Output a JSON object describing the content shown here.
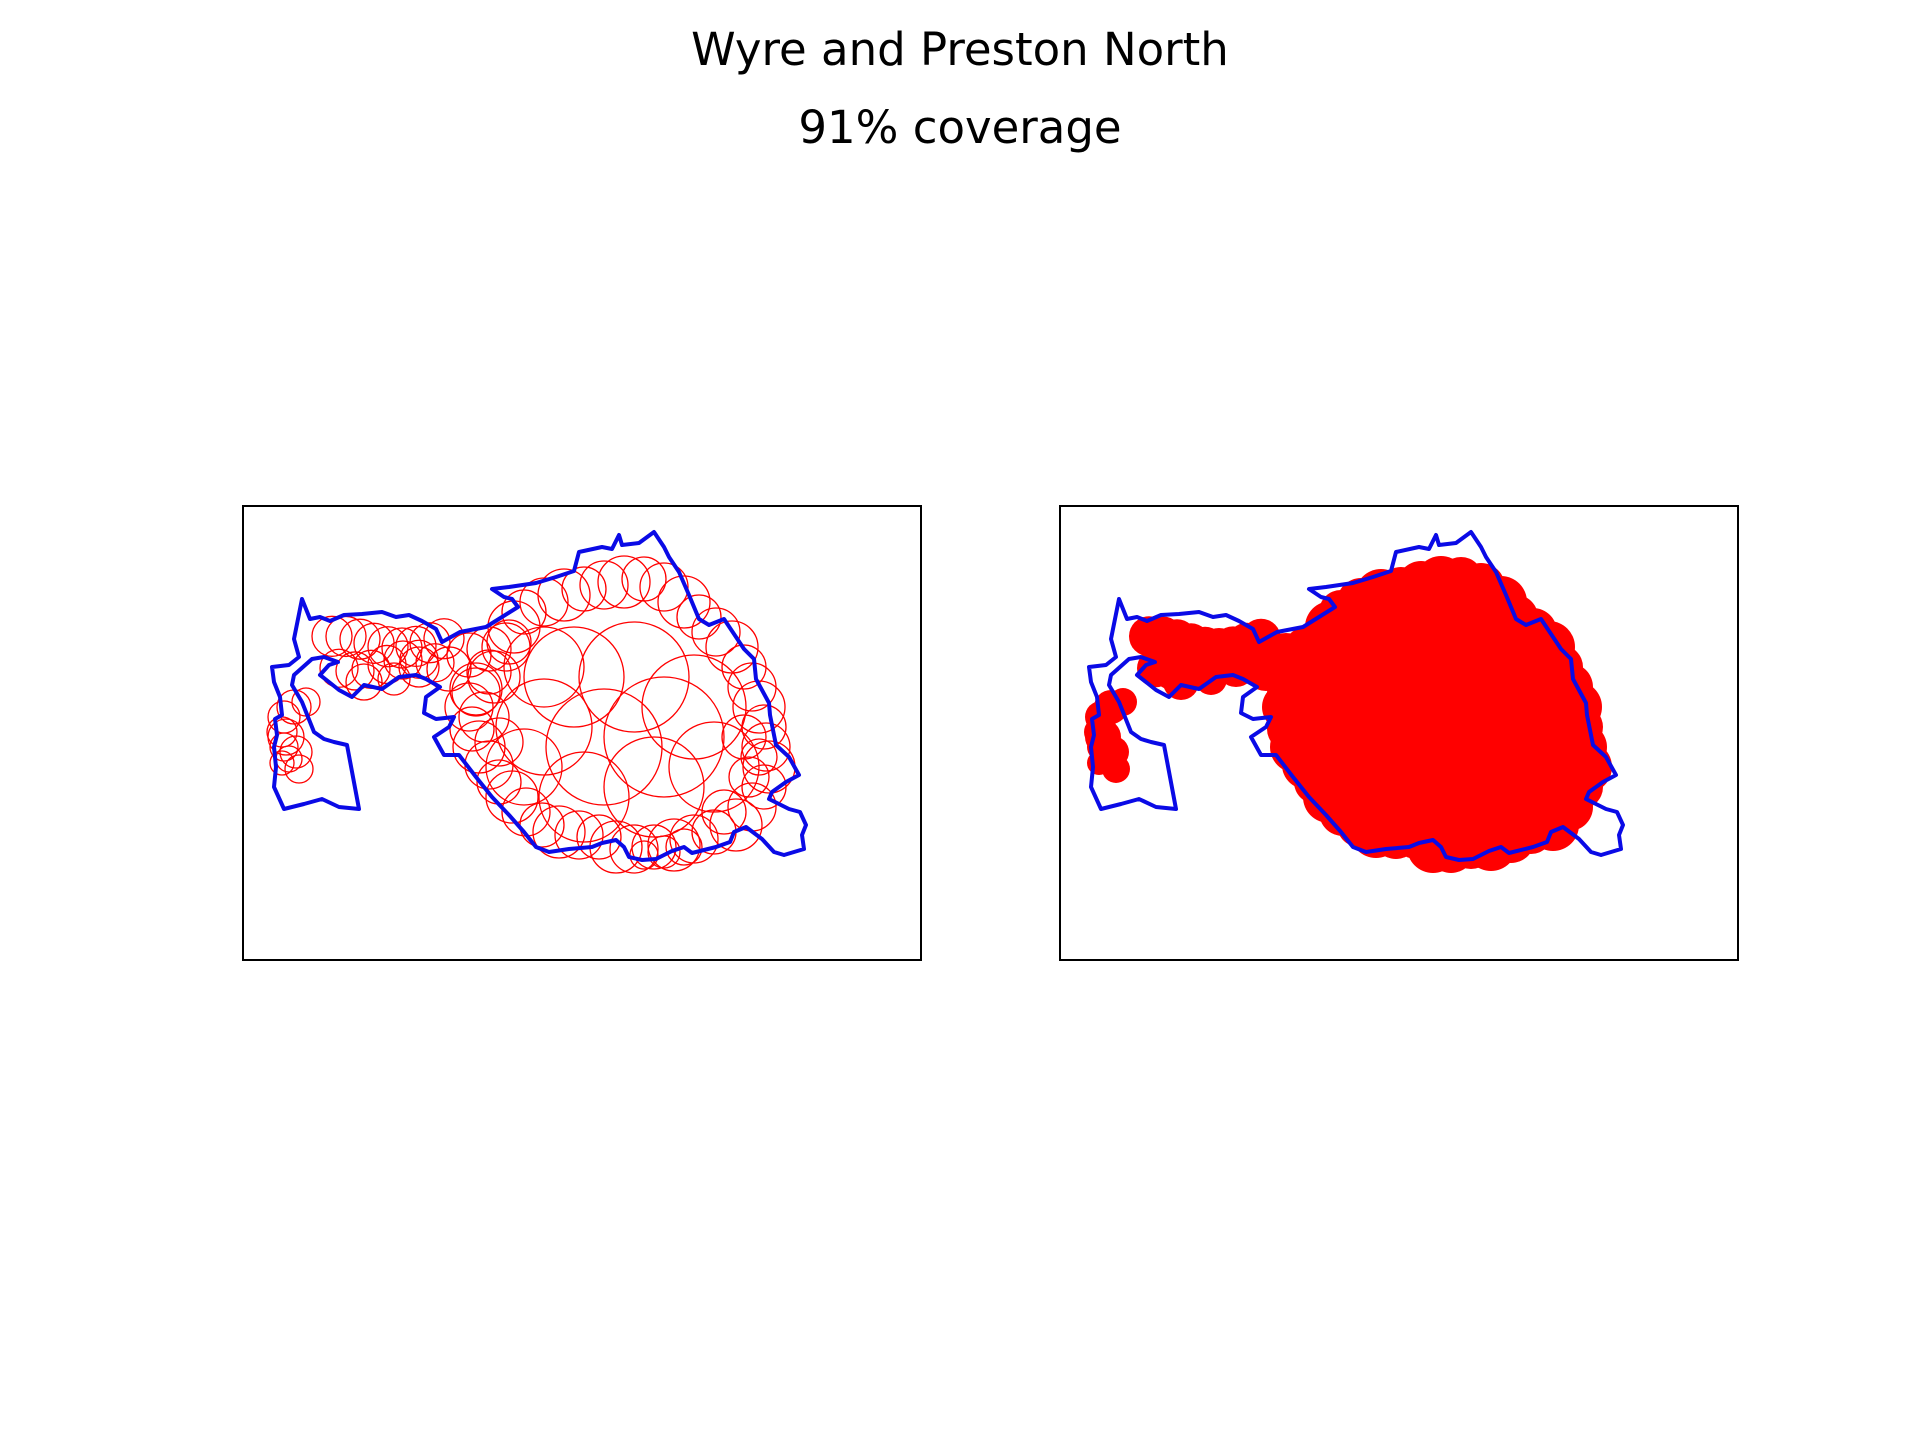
{
  "title": "Wyre and Preston North",
  "subtitle": "91% coverage",
  "coverage_percent": 91,
  "colors": {
    "boundary": "#0a0ae6",
    "coverage": "#ff0000",
    "background": "#ffffff",
    "frame": "#000000"
  },
  "panels": [
    {
      "name": "circle-outlines",
      "style": "outlined circles"
    },
    {
      "name": "filled-coverage",
      "style": "filled union"
    }
  ]
}
